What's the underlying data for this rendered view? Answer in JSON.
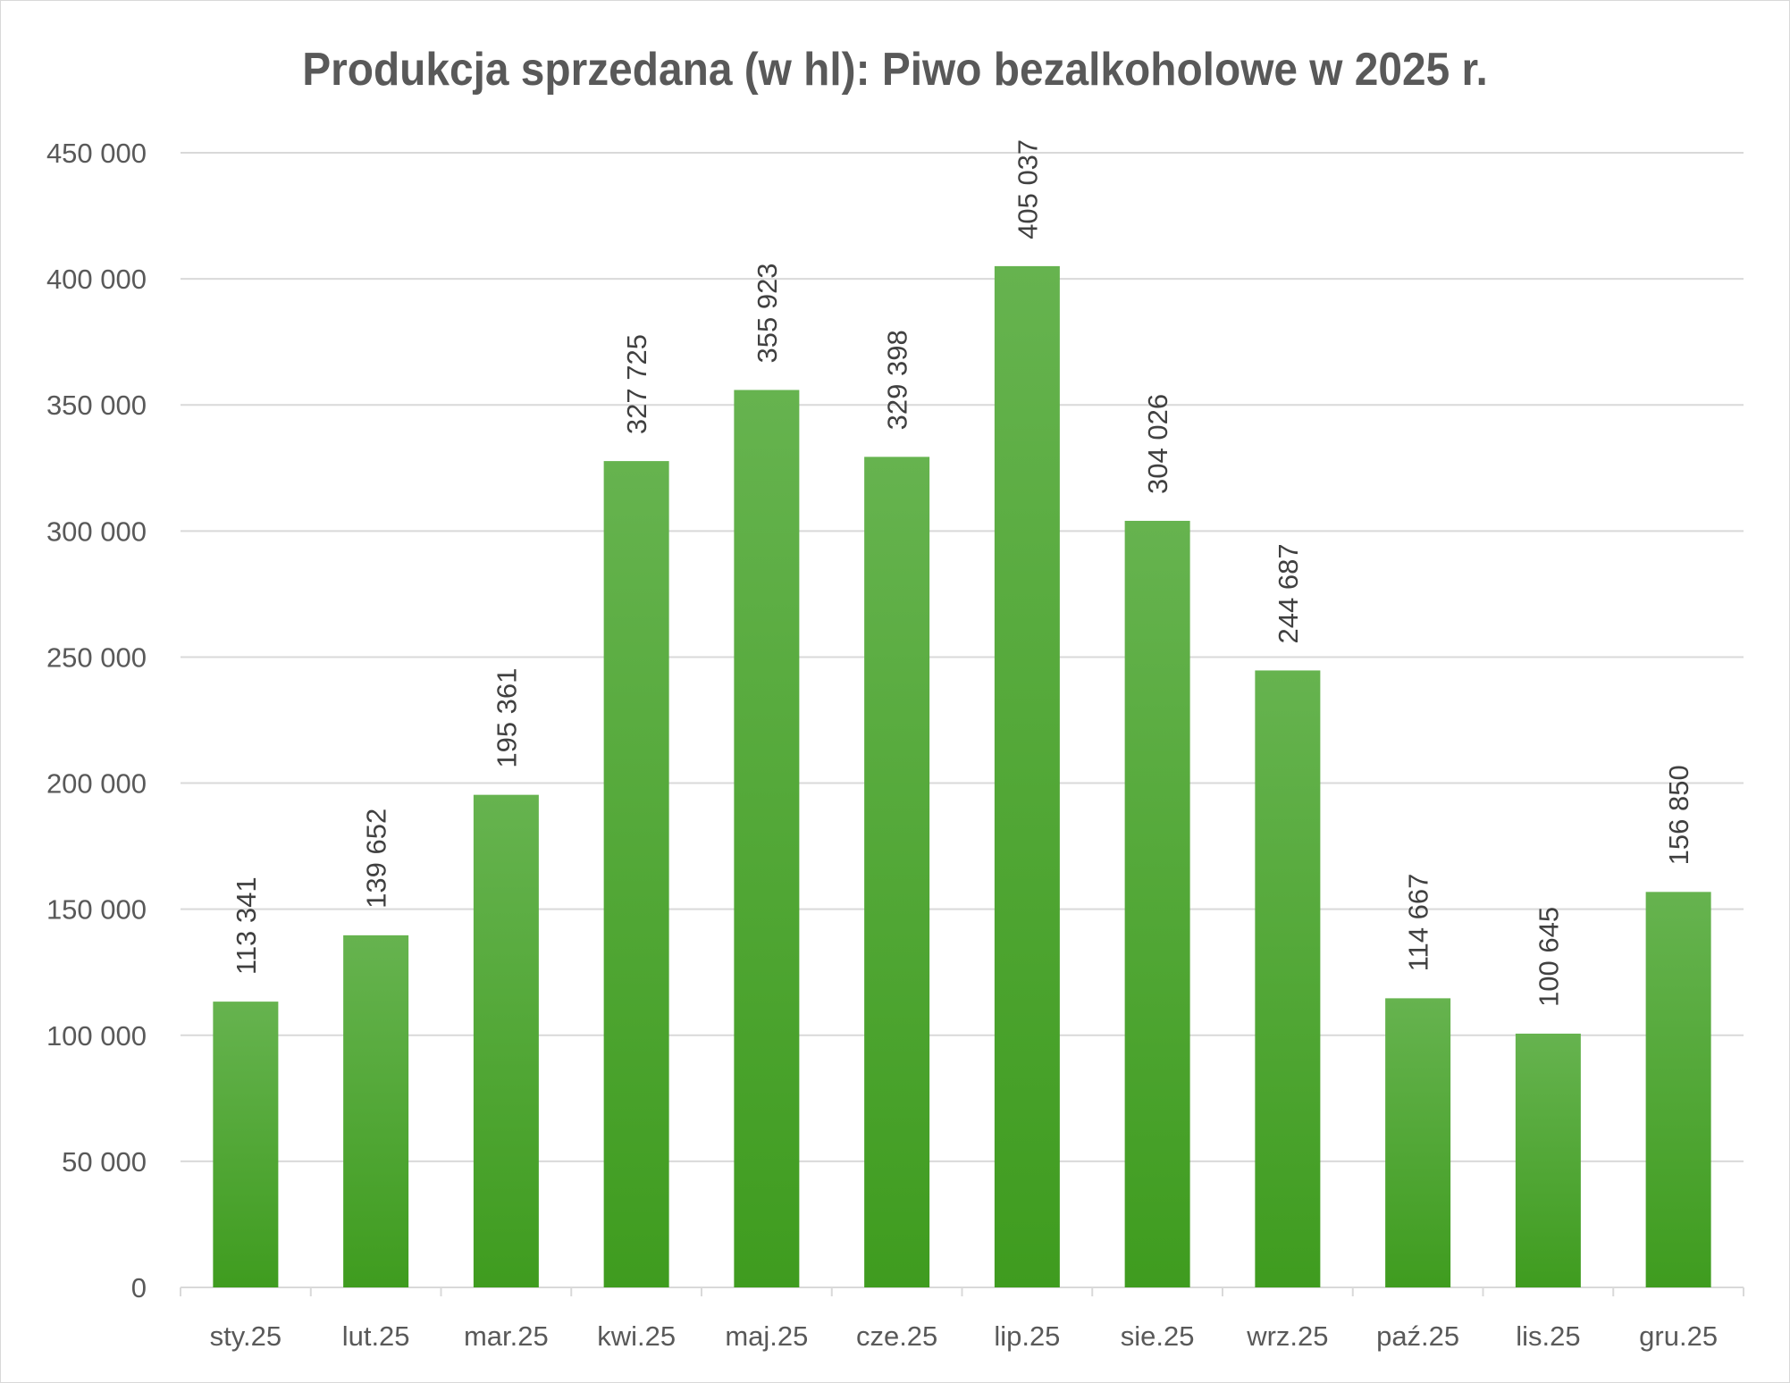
{
  "chart_data": {
    "type": "bar",
    "title": "Produkcja sprzedana (w hl): Piwo bezalkoholowe w 2025 r.",
    "xlabel": "",
    "ylabel": "",
    "categories": [
      "sty.25",
      "lut.25",
      "mar.25",
      "kwi.25",
      "maj.25",
      "cze.25",
      "lip.25",
      "sie.25",
      "wrz.25",
      "paź.25",
      "lis.25",
      "gru.25"
    ],
    "values": [
      113341,
      139652,
      195361,
      327725,
      355923,
      329398,
      405037,
      304026,
      244687,
      114667,
      100645,
      156850
    ],
    "value_labels": [
      "113 341",
      "139 652",
      "195 361",
      "327 725",
      "355 923",
      "329 398",
      "405 037",
      "304 026",
      "244 687",
      "114 667",
      "100 645",
      "156 850"
    ],
    "ylim": [
      0,
      450000
    ],
    "yticks": [
      0,
      50000,
      100000,
      150000,
      200000,
      250000,
      300000,
      350000,
      400000,
      450000
    ],
    "ytick_labels": [
      "0",
      "50 000",
      "100 000",
      "150 000",
      "200 000",
      "250 000",
      "300 000",
      "350 000",
      "400 000",
      "450 000"
    ],
    "grid": true,
    "legend": "none",
    "colors": {
      "bar_top": "#66b34f",
      "bar_bottom": "#3f9c1f",
      "grid": "#d9d9d9",
      "text": "#595959"
    }
  }
}
